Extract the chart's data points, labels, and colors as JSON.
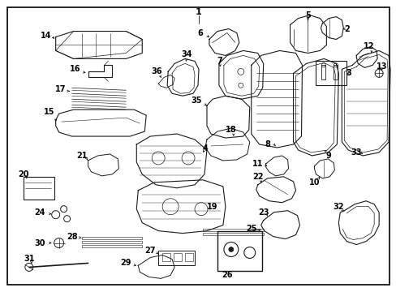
{
  "figsize": [
    4.89,
    3.6
  ],
  "dpi": 100,
  "background_color": "#ffffff",
  "border_color": "#000000",
  "line_color": "#1a1a1a",
  "text_color": "#000000",
  "title": "1"
}
